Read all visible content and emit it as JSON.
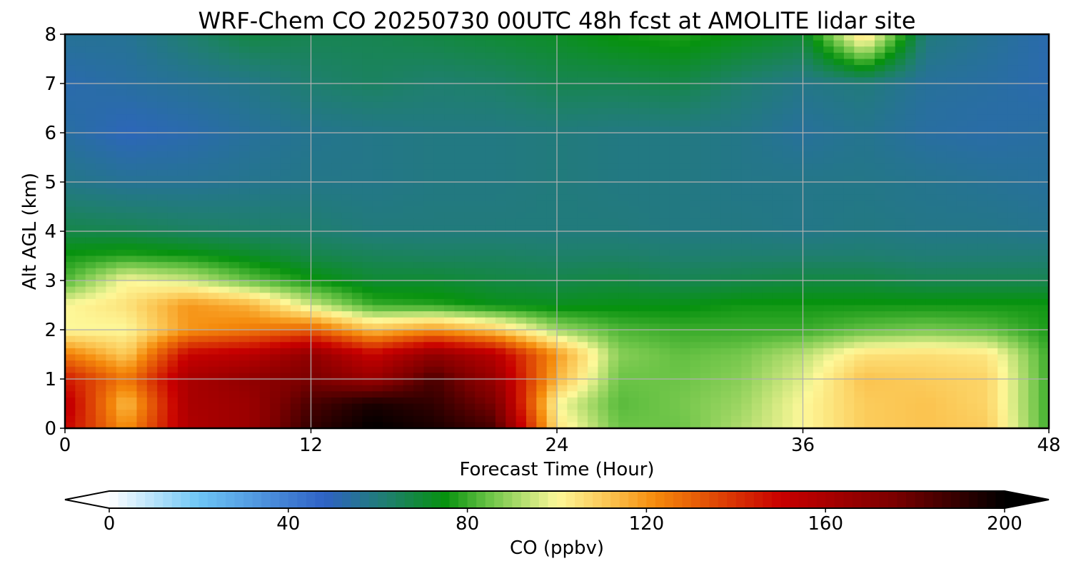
{
  "chart_data": {
    "type": "heatmap",
    "title": "WRF-Chem CO  20250730 00UTC 48h fcst at AMOLITE lidar site",
    "xlabel": "Forecast Time (Hour)",
    "ylabel": "Alt AGL (km)",
    "xlim": [
      0,
      48
    ],
    "ylim": [
      0,
      8
    ],
    "xticks": [
      0,
      12,
      24,
      36,
      48
    ],
    "yticks": [
      0,
      1,
      2,
      3,
      4,
      5,
      6,
      7,
      8
    ],
    "grid": true,
    "x_hours": [
      0,
      3,
      6,
      9,
      12,
      15,
      18,
      21,
      24,
      27,
      30,
      33,
      36,
      39,
      42,
      45,
      48
    ],
    "y_km": [
      0,
      0.5,
      1,
      1.5,
      2,
      2.5,
      3,
      3.5,
      4,
      5,
      6,
      7,
      8
    ],
    "values_ppbv": [
      [
        150,
        120,
        158,
        165,
        190,
        200,
        195,
        185,
        105,
        85,
        85,
        92,
        100,
        110,
        112,
        110,
        80
      ],
      [
        155,
        112,
        160,
        165,
        185,
        195,
        190,
        175,
        100,
        83,
        86,
        90,
        100,
        110,
        112,
        108,
        80
      ],
      [
        145,
        125,
        160,
        168,
        175,
        165,
        185,
        165,
        115,
        85,
        85,
        88,
        97,
        112,
        110,
        108,
        80
      ],
      [
        125,
        110,
        150,
        155,
        168,
        150,
        168,
        155,
        120,
        88,
        84,
        86,
        93,
        105,
        106,
        104,
        80
      ],
      [
        100,
        100,
        120,
        125,
        130,
        112,
        120,
        110,
        90,
        82,
        80,
        80,
        80,
        84,
        86,
        84,
        77
      ],
      [
        100,
        105,
        120,
        115,
        95,
        80,
        78,
        74,
        73,
        74,
        74,
        76,
        76,
        76,
        76,
        76,
        76
      ],
      [
        82,
        100,
        95,
        84,
        76,
        70,
        70,
        68,
        67,
        68,
        66,
        67,
        68,
        68,
        66,
        66,
        66
      ],
      [
        76,
        78,
        76,
        72,
        67,
        65,
        64,
        64,
        63,
        63,
        62,
        62,
        62,
        62,
        61,
        61,
        61
      ],
      [
        67,
        66,
        64,
        63,
        62,
        60,
        60,
        60,
        60,
        60,
        59,
        59,
        58,
        59,
        58,
        58,
        57
      ],
      [
        58,
        56,
        56,
        57,
        58,
        58,
        59,
        59,
        60,
        59,
        59,
        58,
        58,
        58,
        57,
        56,
        55
      ],
      [
        54,
        50,
        52,
        55,
        57,
        58,
        59,
        59,
        60,
        59,
        59,
        58,
        55,
        57,
        54,
        53,
        54
      ],
      [
        52,
        54,
        56,
        58,
        62,
        64,
        62,
        63,
        66,
        66,
        67,
        62,
        58,
        60,
        55,
        54,
        52
      ],
      [
        56,
        56,
        62,
        68,
        66,
        66,
        68,
        70,
        72,
        76,
        78,
        74,
        70,
        108,
        60,
        56,
        52
      ]
    ],
    "colorbar": {
      "label": "CO  (ppbv)",
      "min": 0,
      "max": 200,
      "ticks": [
        0,
        40,
        80,
        120,
        160,
        200
      ],
      "extend": "both",
      "stops": [
        {
          "v": 0,
          "c": "#ffffff"
        },
        {
          "v": 20,
          "c": "#6ec6f6"
        },
        {
          "v": 48,
          "c": "#2f62c6"
        },
        {
          "v": 62,
          "c": "#1f7f6f"
        },
        {
          "v": 75,
          "c": "#07920f"
        },
        {
          "v": 85,
          "c": "#6cc447"
        },
        {
          "v": 100,
          "c": "#fdf899"
        },
        {
          "v": 112,
          "c": "#fbc34f"
        },
        {
          "v": 122,
          "c": "#f58a0b"
        },
        {
          "v": 150,
          "c": "#c80000"
        },
        {
          "v": 175,
          "c": "#7c0000"
        },
        {
          "v": 200,
          "c": "#000000"
        }
      ]
    }
  }
}
